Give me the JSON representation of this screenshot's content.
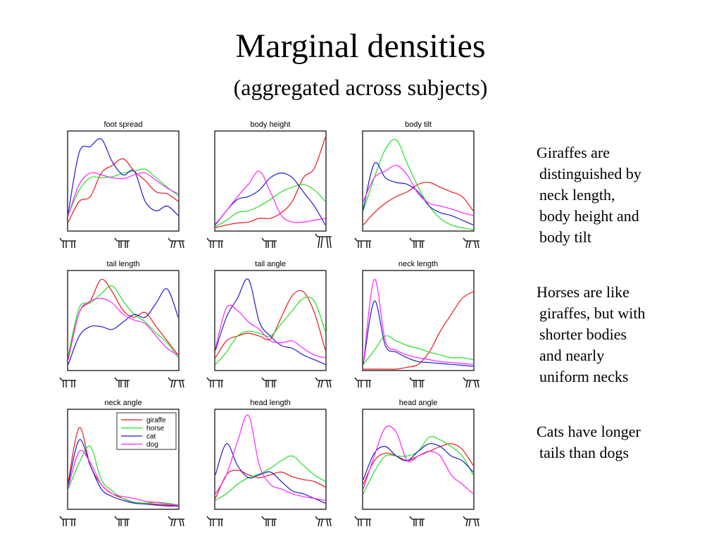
{
  "slide": {
    "title": "Marginal densities",
    "subtitle": "(aggregated across subjects)"
  },
  "notes": [
    {
      "lines": [
        "Giraffes are",
        "distinguished by",
        "neck length,",
        "body height and",
        "body tilt"
      ]
    },
    {
      "lines": [
        "Horses are like",
        "giraffes, but with",
        "shorter bodies",
        "and nearly",
        "uniform necks"
      ]
    },
    {
      "lines": [
        "Cats have longer",
        "tails than dogs"
      ]
    }
  ],
  "colors": {
    "giraffe": "#e8191e",
    "horse": "#22e022",
    "cat": "#1e1ec8",
    "dog": "#ff22ff",
    "frame": "#000000",
    "glyph": "#000000"
  },
  "legend": {
    "panel": "neck angle",
    "entries": [
      "giraffe",
      "horse",
      "cat",
      "dog"
    ]
  },
  "chart_data": [
    {
      "type": "line",
      "title": "foot spread",
      "x": [
        0,
        0.1,
        0.2,
        0.3,
        0.4,
        0.5,
        0.6,
        0.7,
        0.8,
        0.9,
        1
      ],
      "xlim": [
        0,
        1
      ],
      "ylim": [
        0,
        1
      ],
      "axis_glyphs": [
        "low",
        "mid",
        "high"
      ],
      "series": [
        {
          "name": "giraffe",
          "values": [
            0.08,
            0.3,
            0.35,
            0.6,
            0.68,
            0.75,
            0.62,
            0.52,
            0.4,
            0.38,
            0.3
          ]
        },
        {
          "name": "horse",
          "values": [
            0.16,
            0.42,
            0.55,
            0.55,
            0.56,
            0.6,
            0.62,
            0.64,
            0.55,
            0.45,
            0.36
          ]
        },
        {
          "name": "cat",
          "values": [
            0.18,
            0.82,
            0.88,
            0.96,
            0.72,
            0.58,
            0.62,
            0.3,
            0.2,
            0.25,
            0.15
          ]
        },
        {
          "name": "dog",
          "values": [
            0.15,
            0.48,
            0.6,
            0.58,
            0.55,
            0.54,
            0.58,
            0.6,
            0.52,
            0.44,
            0.38
          ]
        }
      ]
    },
    {
      "type": "line",
      "title": "body height",
      "x": [
        0,
        0.1,
        0.2,
        0.3,
        0.4,
        0.5,
        0.6,
        0.7,
        0.8,
        0.9,
        1
      ],
      "xlim": [
        0,
        1
      ],
      "ylim": [
        0,
        1
      ],
      "axis_glyphs": [
        "low",
        "mid",
        "high"
      ],
      "series": [
        {
          "name": "giraffe",
          "values": [
            0.02,
            0.05,
            0.07,
            0.08,
            0.12,
            0.12,
            0.18,
            0.3,
            0.55,
            0.65,
            0.98
          ]
        },
        {
          "name": "horse",
          "values": [
            0.03,
            0.1,
            0.18,
            0.2,
            0.25,
            0.32,
            0.4,
            0.45,
            0.48,
            0.42,
            0.3
          ]
        },
        {
          "name": "cat",
          "values": [
            0.05,
            0.2,
            0.32,
            0.35,
            0.42,
            0.55,
            0.6,
            0.55,
            0.4,
            0.25,
            0.05
          ]
        },
        {
          "name": "dog",
          "values": [
            0.06,
            0.2,
            0.35,
            0.48,
            0.62,
            0.4,
            0.15,
            0.08,
            0.08,
            0.1,
            0.12
          ]
        }
      ]
    },
    {
      "type": "line",
      "title": "body tilt",
      "x": [
        0,
        0.1,
        0.2,
        0.3,
        0.4,
        0.5,
        0.6,
        0.7,
        0.8,
        0.9,
        1
      ],
      "xlim": [
        0,
        1
      ],
      "ylim": [
        0,
        1
      ],
      "axis_glyphs": [
        "low",
        "mid",
        "high"
      ],
      "series": [
        {
          "name": "giraffe",
          "values": [
            0.05,
            0.18,
            0.28,
            0.35,
            0.4,
            0.48,
            0.5,
            0.45,
            0.4,
            0.35,
            0.2
          ]
        },
        {
          "name": "horse",
          "values": [
            0.2,
            0.55,
            0.85,
            0.95,
            0.7,
            0.45,
            0.25,
            0.12,
            0.05,
            0.02,
            0.0
          ]
        },
        {
          "name": "cat",
          "values": [
            0.22,
            0.7,
            0.55,
            0.5,
            0.48,
            0.4,
            0.25,
            0.18,
            0.15,
            0.1,
            0.05
          ]
        },
        {
          "name": "dog",
          "values": [
            0.3,
            0.55,
            0.62,
            0.68,
            0.58,
            0.38,
            0.28,
            0.25,
            0.22,
            0.18,
            0.15
          ]
        }
      ]
    },
    {
      "type": "line",
      "title": "tail length",
      "x": [
        0,
        0.1,
        0.2,
        0.3,
        0.4,
        0.5,
        0.6,
        0.7,
        0.8,
        0.9,
        1
      ],
      "xlim": [
        0,
        1
      ],
      "ylim": [
        0,
        1
      ],
      "axis_glyphs": [
        "low",
        "mid",
        "high"
      ],
      "series": [
        {
          "name": "giraffe",
          "values": [
            0.12,
            0.6,
            0.72,
            0.95,
            0.82,
            0.62,
            0.55,
            0.6,
            0.45,
            0.3,
            0.15
          ]
        },
        {
          "name": "horse",
          "values": [
            0.15,
            0.65,
            0.7,
            0.8,
            0.88,
            0.72,
            0.58,
            0.5,
            0.38,
            0.28,
            0.12
          ]
        },
        {
          "name": "cat",
          "values": [
            0.05,
            0.35,
            0.45,
            0.45,
            0.42,
            0.5,
            0.58,
            0.55,
            0.7,
            0.85,
            0.55
          ]
        },
        {
          "name": "dog",
          "values": [
            0.1,
            0.6,
            0.72,
            0.75,
            0.7,
            0.58,
            0.52,
            0.48,
            0.35,
            0.22,
            0.15
          ]
        }
      ]
    },
    {
      "type": "line",
      "title": "tail angle",
      "x": [
        0,
        0.1,
        0.2,
        0.3,
        0.4,
        0.5,
        0.6,
        0.7,
        0.8,
        0.9,
        1
      ],
      "xlim": [
        0,
        1
      ],
      "ylim": [
        0,
        1
      ],
      "axis_glyphs": [
        "low",
        "mid",
        "high"
      ],
      "series": [
        {
          "name": "giraffe",
          "values": [
            0.12,
            0.3,
            0.35,
            0.38,
            0.35,
            0.32,
            0.55,
            0.78,
            0.82,
            0.6,
            0.2
          ]
        },
        {
          "name": "horse",
          "values": [
            0.05,
            0.18,
            0.35,
            0.4,
            0.38,
            0.35,
            0.48,
            0.62,
            0.75,
            0.72,
            0.4
          ]
        },
        {
          "name": "cat",
          "values": [
            0.2,
            0.55,
            0.75,
            0.95,
            0.5,
            0.35,
            0.25,
            0.22,
            0.15,
            0.1,
            0.05
          ]
        },
        {
          "name": "dog",
          "values": [
            0.22,
            0.65,
            0.62,
            0.5,
            0.42,
            0.3,
            0.28,
            0.3,
            0.22,
            0.15,
            0.12
          ]
        }
      ]
    },
    {
      "type": "line",
      "title": "neck length",
      "x": [
        0,
        0.1,
        0.2,
        0.3,
        0.4,
        0.5,
        0.6,
        0.7,
        0.8,
        0.9,
        1
      ],
      "xlim": [
        0,
        1
      ],
      "ylim": [
        0,
        1
      ],
      "axis_glyphs": [
        "low",
        "mid",
        "high"
      ],
      "series": [
        {
          "name": "giraffe",
          "values": [
            0.0,
            0.0,
            0.0,
            0.0,
            0.02,
            0.05,
            0.18,
            0.4,
            0.58,
            0.75,
            0.82
          ]
        },
        {
          "name": "horse",
          "values": [
            0.05,
            0.2,
            0.35,
            0.3,
            0.25,
            0.22,
            0.18,
            0.15,
            0.12,
            0.12,
            0.1
          ]
        },
        {
          "name": "cat",
          "values": [
            0.05,
            0.72,
            0.25,
            0.18,
            0.12,
            0.08,
            0.07,
            0.06,
            0.05,
            0.04,
            0.03
          ]
        },
        {
          "name": "dog",
          "values": [
            0.05,
            0.95,
            0.3,
            0.2,
            0.15,
            0.12,
            0.1,
            0.08,
            0.07,
            0.06,
            0.05
          ]
        }
      ]
    },
    {
      "type": "line",
      "title": "neck angle",
      "x": [
        0,
        0.1,
        0.2,
        0.3,
        0.4,
        0.5,
        0.6,
        0.7,
        0.8,
        0.9,
        1
      ],
      "xlim": [
        0,
        1
      ],
      "ylim": [
        0,
        1
      ],
      "axis_glyphs": [
        "low",
        "mid",
        "high"
      ],
      "series": [
        {
          "name": "giraffe",
          "values": [
            0.28,
            0.85,
            0.45,
            0.25,
            0.15,
            0.1,
            0.06,
            0.05,
            0.04,
            0.03,
            0.02
          ]
        },
        {
          "name": "horse",
          "values": [
            0.2,
            0.48,
            0.65,
            0.3,
            0.18,
            0.1,
            0.06,
            0.05,
            0.06,
            0.05,
            0.03
          ]
        },
        {
          "name": "cat",
          "values": [
            0.25,
            0.72,
            0.45,
            0.2,
            0.12,
            0.08,
            0.05,
            0.04,
            0.03,
            0.02,
            0.02
          ]
        },
        {
          "name": "dog",
          "values": [
            0.22,
            0.6,
            0.48,
            0.25,
            0.15,
            0.12,
            0.1,
            0.07,
            0.06,
            0.04,
            0.03
          ]
        }
      ]
    },
    {
      "type": "line",
      "title": "head length",
      "x": [
        0,
        0.1,
        0.2,
        0.3,
        0.4,
        0.5,
        0.6,
        0.7,
        0.8,
        0.9,
        1
      ],
      "xlim": [
        0,
        1
      ],
      "ylim": [
        0,
        1
      ],
      "axis_glyphs": [
        "low",
        "mid",
        "high"
      ],
      "series": [
        {
          "name": "giraffe",
          "values": [
            0.1,
            0.35,
            0.4,
            0.35,
            0.32,
            0.35,
            0.38,
            0.33,
            0.3,
            0.28,
            0.22
          ]
        },
        {
          "name": "horse",
          "values": [
            0.08,
            0.15,
            0.25,
            0.32,
            0.36,
            0.42,
            0.5,
            0.55,
            0.45,
            0.35,
            0.28
          ]
        },
        {
          "name": "cat",
          "values": [
            0.35,
            0.68,
            0.45,
            0.32,
            0.35,
            0.38,
            0.28,
            0.18,
            0.15,
            0.1,
            0.05
          ]
        },
        {
          "name": "dog",
          "values": [
            0.15,
            0.35,
            0.7,
            0.98,
            0.45,
            0.25,
            0.2,
            0.15,
            0.12,
            0.1,
            0.08
          ]
        }
      ]
    },
    {
      "type": "line",
      "title": "head angle",
      "x": [
        0,
        0.1,
        0.2,
        0.3,
        0.4,
        0.5,
        0.6,
        0.7,
        0.8,
        0.9,
        1
      ],
      "xlim": [
        0,
        1
      ],
      "ylim": [
        0,
        1
      ],
      "axis_glyphs": [
        "low",
        "mid",
        "high"
      ],
      "series": [
        {
          "name": "giraffe",
          "values": [
            0.25,
            0.5,
            0.58,
            0.55,
            0.5,
            0.55,
            0.6,
            0.65,
            0.68,
            0.62,
            0.45
          ]
        },
        {
          "name": "horse",
          "values": [
            0.15,
            0.38,
            0.55,
            0.55,
            0.55,
            0.6,
            0.75,
            0.72,
            0.65,
            0.55,
            0.35
          ]
        },
        {
          "name": "cat",
          "values": [
            0.3,
            0.58,
            0.65,
            0.55,
            0.5,
            0.6,
            0.68,
            0.65,
            0.55,
            0.5,
            0.38
          ]
        },
        {
          "name": "dog",
          "values": [
            0.2,
            0.55,
            0.85,
            0.8,
            0.5,
            0.55,
            0.6,
            0.55,
            0.35,
            0.25,
            0.15
          ]
        }
      ]
    }
  ]
}
